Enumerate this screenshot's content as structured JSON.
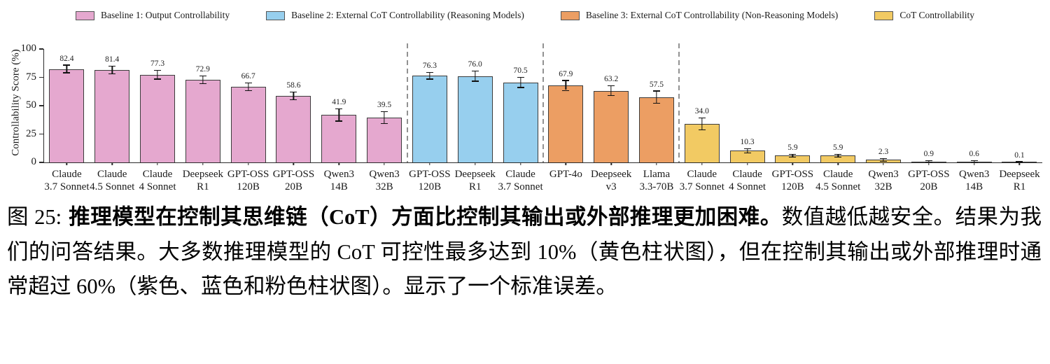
{
  "caption": {
    "prefix": "图 25:",
    "bold": "推理模型在控制其思维链（CoT）方面比控制其输出或外部推理更加困难。",
    "rest": "数值越低越安全。结果为我们的问答结果。大多数推理模型的 CoT 可控性最多达到 10%（黄色柱状图），但在控制其输出或外部推理时通常超过 60%（紫色、蓝色和粉色柱状图）。显示了一个标准误差。"
  },
  "chart_data": {
    "type": "bar",
    "title": "",
    "xlabel": "",
    "ylabel": "Controllability Score (%)",
    "ylim": [
      0,
      100
    ],
    "yticks": [
      0,
      25,
      50,
      75,
      100
    ],
    "grid": false,
    "legend_position": "top",
    "error_bars": "one standard error",
    "legend": [
      {
        "label": "Baseline 1: Output Controllability",
        "color": "#e5a8cf"
      },
      {
        "label": "Baseline 2: External CoT Controllability (Reasoning Models)",
        "color": "#97cfee"
      },
      {
        "label": "Baseline 3: External CoT Controllability (Non-Reasoning Models)",
        "color": "#ec9e63"
      },
      {
        "label": "CoT Controllability",
        "color": "#f2ca63"
      }
    ],
    "groups": [
      {
        "name": "Baseline 1: Output Controllability",
        "color": "#e5a8cf",
        "bars": [
          {
            "label1": "Claude",
            "label2": "3.7 Sonnet",
            "value": 82.4,
            "err": 3.0
          },
          {
            "label1": "Claude",
            "label2": "4.5 Sonnet",
            "value": 81.4,
            "err": 3.0
          },
          {
            "label1": "Claude",
            "label2": "4 Sonnet",
            "value": 77.3,
            "err": 3.5
          },
          {
            "label1": "Deepseek",
            "label2": "R1",
            "value": 72.9,
            "err": 3.0
          },
          {
            "label1": "GPT-OSS",
            "label2": "120B",
            "value": 66.7,
            "err": 3.0
          },
          {
            "label1": "GPT-OSS",
            "label2": "20B",
            "value": 58.6,
            "err": 3.0
          },
          {
            "label1": "Qwen3",
            "label2": "14B",
            "value": 41.9,
            "err": 5.0
          },
          {
            "label1": "Qwen3",
            "label2": "32B",
            "value": 39.5,
            "err": 5.0
          }
        ]
      },
      {
        "name": "Baseline 2: External CoT Controllability (Reasoning Models)",
        "color": "#97cfee",
        "bars": [
          {
            "label1": "GPT-OSS",
            "label2": "120B",
            "value": 76.3,
            "err": 2.5
          },
          {
            "label1": "Deepseek",
            "label2": "R1",
            "value": 76.0,
            "err": 4.0
          },
          {
            "label1": "Claude",
            "label2": "3.7 Sonnet",
            "value": 70.5,
            "err": 4.0
          }
        ]
      },
      {
        "name": "Baseline 3: External CoT Controllability (Non-Reasoning Models)",
        "color": "#ec9e63",
        "bars": [
          {
            "label1": "GPT-4o",
            "label2": "",
            "value": 67.9,
            "err": 4.0
          },
          {
            "label1": "Deepseek",
            "label2": "v3",
            "value": 63.2,
            "err": 4.0
          },
          {
            "label1": "Llama",
            "label2": "3.3-70B",
            "value": 57.5,
            "err": 5.0
          }
        ]
      },
      {
        "name": "CoT Controllability",
        "color": "#f2ca63",
        "bars": [
          {
            "label1": "Claude",
            "label2": "3.7 Sonnet",
            "value": 34.0,
            "err": 5.0
          },
          {
            "label1": "Claude",
            "label2": "4 Sonnet",
            "value": 10.3,
            "err": 1.5
          },
          {
            "label1": "GPT-OSS",
            "label2": "120B",
            "value": 5.9,
            "err": 1.0
          },
          {
            "label1": "Claude",
            "label2": "4.5 Sonnet",
            "value": 5.9,
            "err": 1.0
          },
          {
            "label1": "Qwen3",
            "label2": "32B",
            "value": 2.3,
            "err": 0.8
          },
          {
            "label1": "GPT-OSS",
            "label2": "20B",
            "value": 0.9,
            "err": 0.4
          },
          {
            "label1": "Qwen3",
            "label2": "14B",
            "value": 0.6,
            "err": 0.4
          },
          {
            "label1": "Deepseek",
            "label2": "R1",
            "value": 0.1,
            "err": 0.2
          }
        ]
      }
    ]
  }
}
